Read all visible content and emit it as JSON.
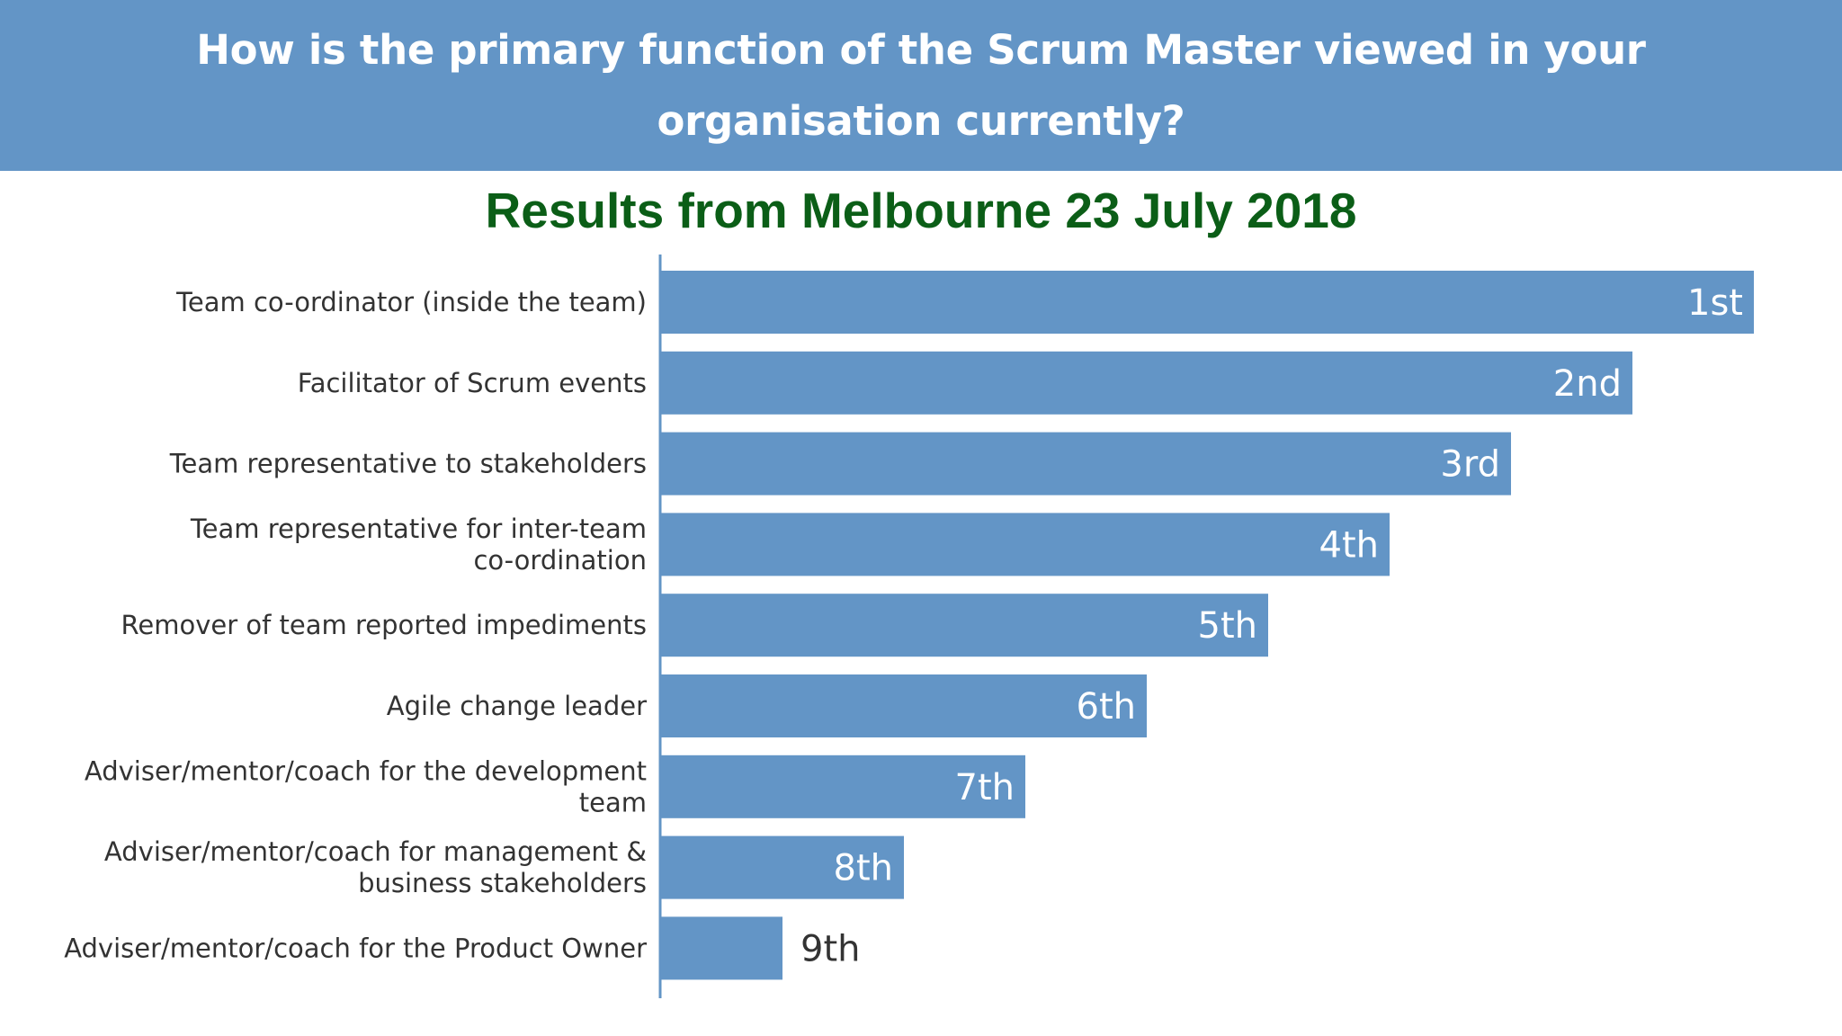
{
  "header": {
    "title": "How is the primary function of the Scrum Master viewed in your organisation currently?"
  },
  "subtitle": "Results from Melbourne 23 July 2018",
  "colors": {
    "banner": "#6395c6",
    "bar": "#6395c6",
    "subtitle": "#0b5e17",
    "label_inside": "#ffffff",
    "label_outside": "#333333"
  },
  "chart_data": {
    "type": "bar",
    "orientation": "horizontal",
    "title": "Results from Melbourne 23 July 2018",
    "categories": [
      [
        "Team co-ordinator (inside the team)"
      ],
      [
        "Facilitator of Scrum events"
      ],
      [
        "Team representative to stakeholders"
      ],
      [
        "Team representative for inter-team",
        "co-ordination"
      ],
      [
        "Remover of team reported impediments"
      ],
      [
        "Agile change leader"
      ],
      [
        "Adviser/mentor/coach for the development",
        "team"
      ],
      [
        "Adviser/mentor/coach for management &",
        "business stakeholders"
      ],
      [
        "Adviser/mentor/coach for the Product Owner"
      ]
    ],
    "values": [
      9,
      8,
      7,
      6,
      5,
      4,
      3,
      2,
      1
    ],
    "data_labels": [
      "1st",
      "2nd",
      "3rd",
      "4th",
      "5th",
      "6th",
      "7th",
      "8th",
      "9th"
    ],
    "xlim": [
      0,
      9
    ],
    "grid": false,
    "legend": false
  }
}
